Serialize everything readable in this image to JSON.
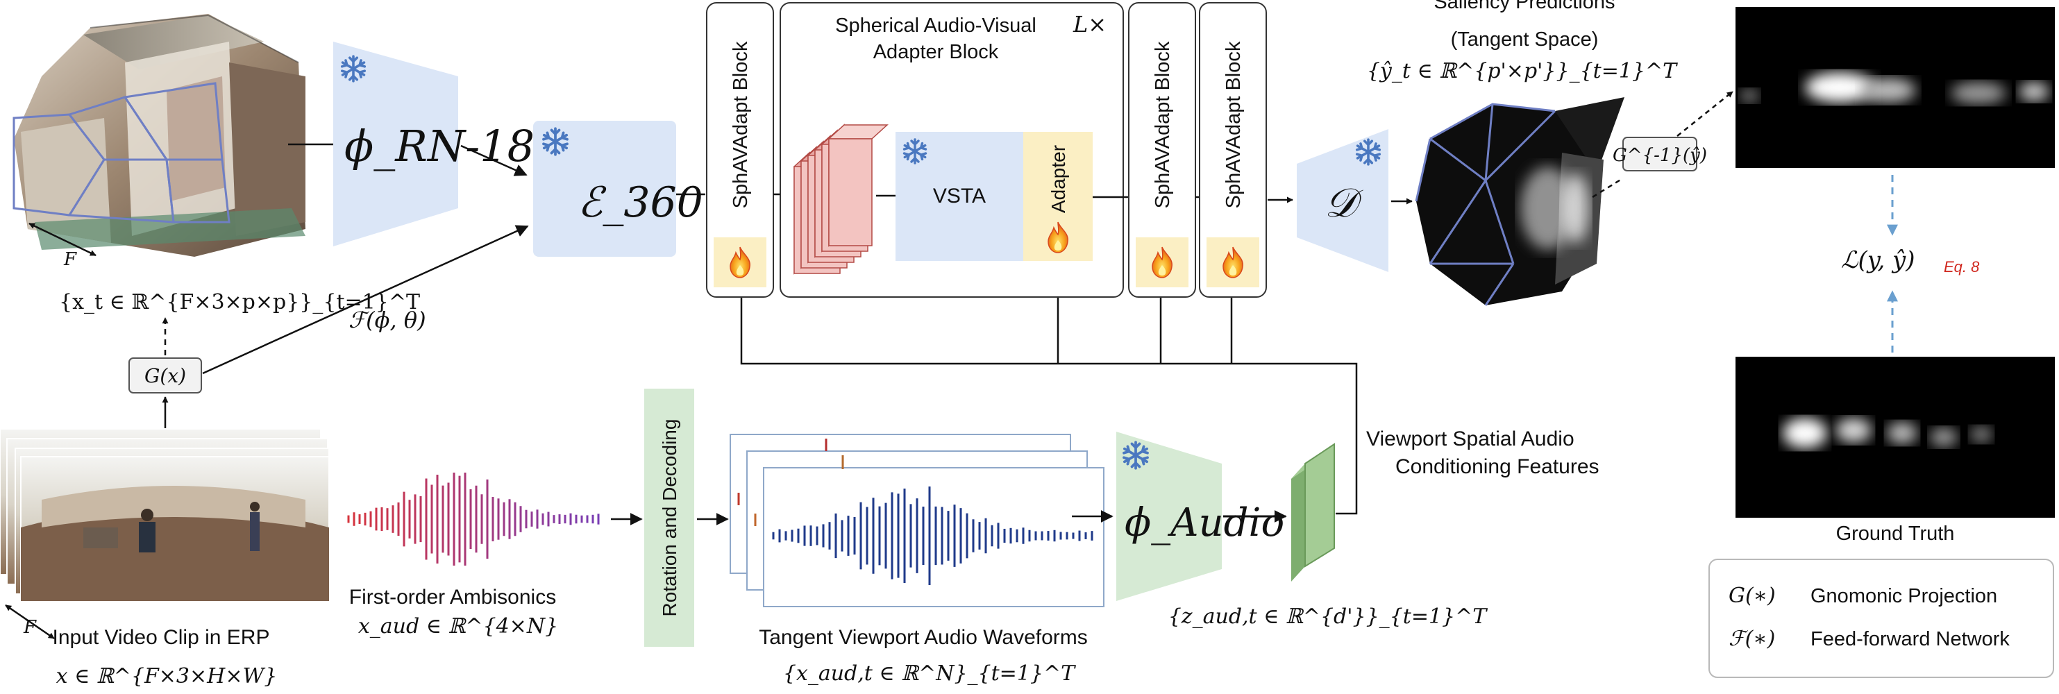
{
  "inputs": {
    "cube_caption": "{x_t ∈ ℝ^{F×3×p×p}}_{t=1}^T",
    "cube_f_label": "F",
    "projection_label": "G(x)",
    "erp_caption": "Input Video Clip in ERP",
    "erp_f_label": "F",
    "erp_math": "x ∈ ℝ^{F×3×H×W}"
  },
  "encoders": {
    "rn18_label": "ϕ_RN-18",
    "e360_label": "ℰ_360°",
    "ff_label": "ℱ(ϕ, θ)"
  },
  "adapt_blocks": {
    "block_label": "SphAVAdapt Block",
    "group_title_line1": "Spherical Audio-Visual",
    "group_title_line2": "Adapter Block",
    "repeat": "L×",
    "vsta_label": "VSTA",
    "adapter_label": "Adapter"
  },
  "decoder": {
    "label": "𝒟",
    "prediction_title_line1": "Saliency Predictions",
    "prediction_title_line2": "(Tangent Space)",
    "prediction_math": "{ŷ_t ∈ ℝ^{p'×p'}}_{t=1}^T",
    "inverse_label": "G^{-1}(ŷ)"
  },
  "audio": {
    "ambisonics_caption": "First-order Ambisonics",
    "ambisonics_math": "x_aud ∈ ℝ^{4×N}",
    "rotation_label": "Rotation and Decoding",
    "tangent_caption": "Tangent Viewport Audio Waveforms",
    "tangent_math": "{x_aud,t ∈ ℝ^N}_{t=1}^T",
    "audio_encoder_label": "ϕ_Audio",
    "feature_math": "{z_aud,t ∈ ℝ^{d'}}_{t=1}^T",
    "conditioning_line1": "Viewport Spatial Audio",
    "conditioning_line2": "Conditioning Features"
  },
  "loss": {
    "label": "ℒ(y, ŷ)",
    "eq_ref": "Eq. 8",
    "ground_truth_caption": "Ground Truth"
  },
  "legend": {
    "items": [
      {
        "symbol": "G(∗)",
        "text": "Gnomonic Projection"
      },
      {
        "symbol": "ℱ(∗)",
        "text": "Feed-forward Network"
      }
    ]
  },
  "colors": {
    "frozen_blue": "#dbe6f7",
    "audio_green": "#d6ead4",
    "adapter_yellow": "#fbefc4",
    "snowflake": "#4a78c0",
    "eq_red": "#d0281f",
    "dashed_blue": "#6a9fcf"
  },
  "icons": {
    "frozen": "snowflake-icon",
    "trainable": "flame-icon"
  }
}
